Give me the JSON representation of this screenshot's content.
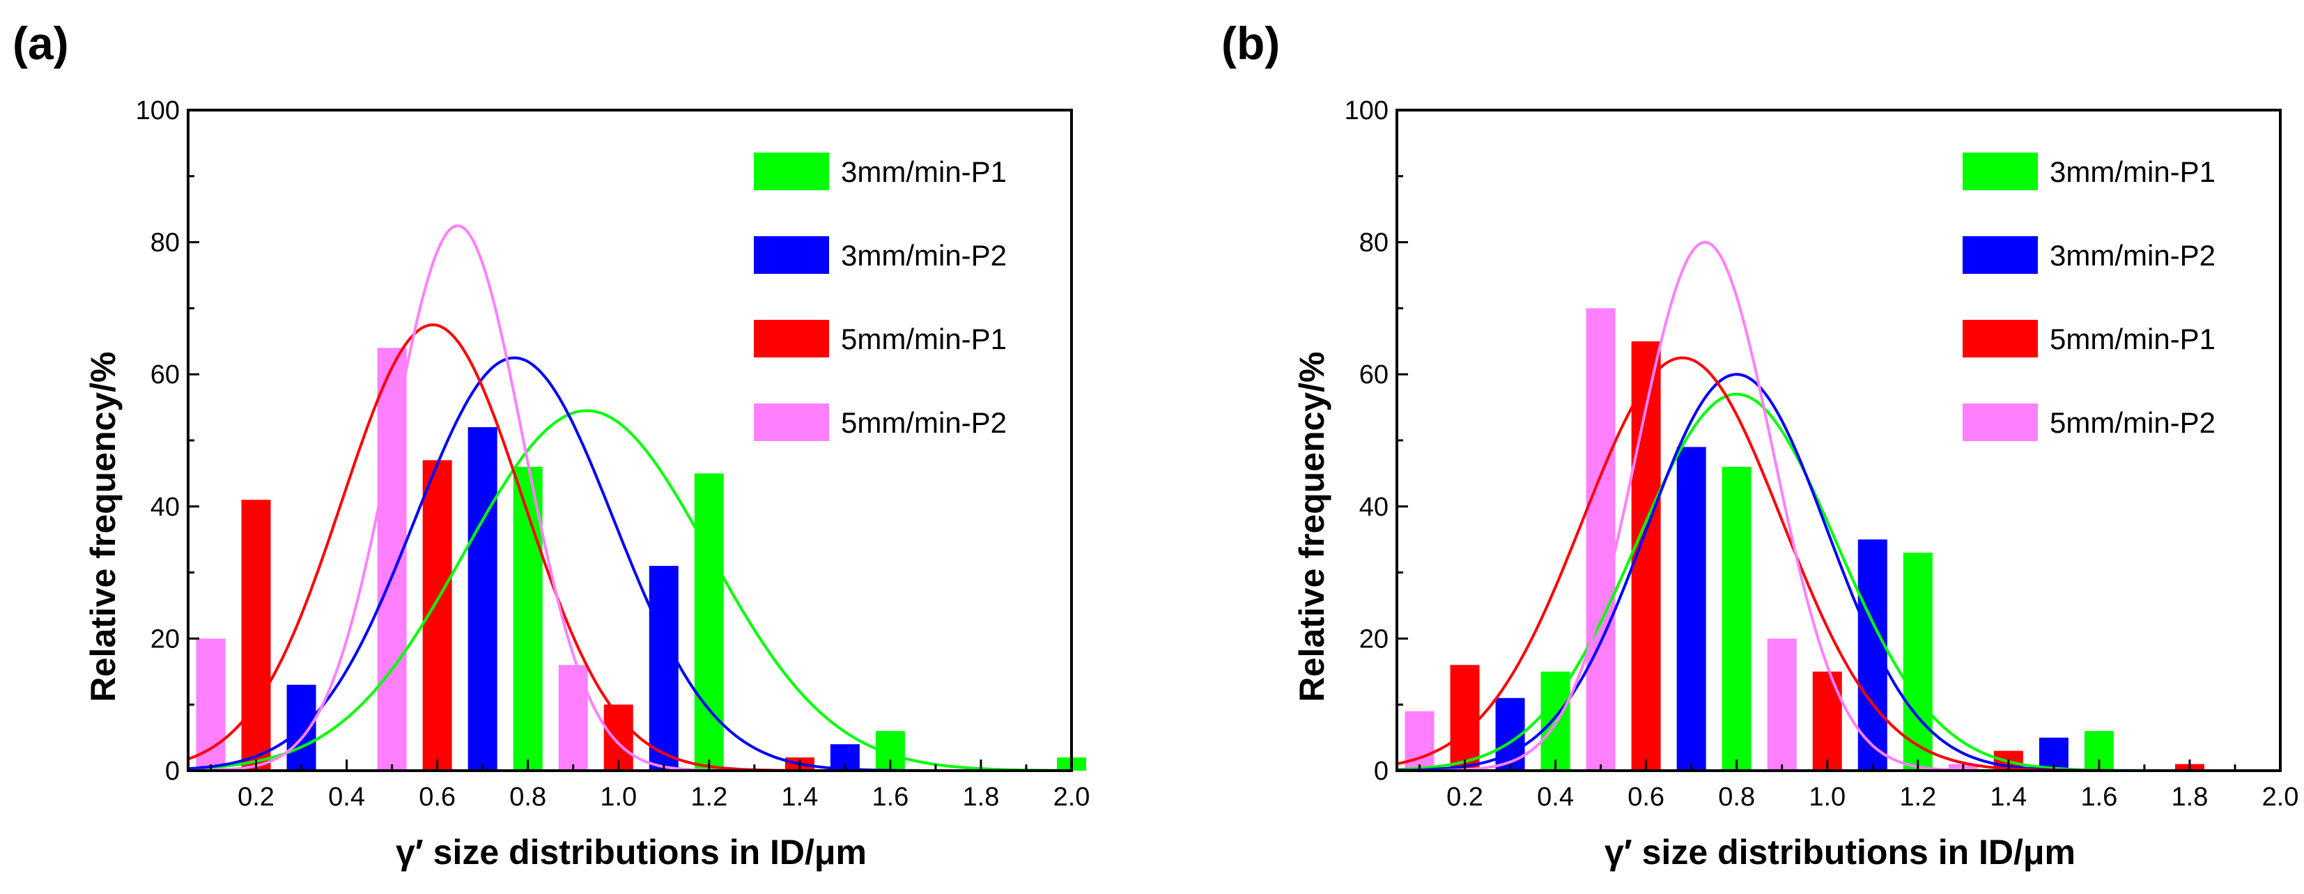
{
  "figure": {
    "panel_labels": [
      "(a)",
      "(b)"
    ]
  },
  "chart_data": [
    {
      "type": "bar",
      "panel": "(a)",
      "xlabel": "γ′ size distributions in ID/μm",
      "ylabel": "Relative frequency/%",
      "xlim": [
        0.05,
        2.0
      ],
      "ylim": [
        0,
        100
      ],
      "xticks": [
        "0.2",
        "0.4",
        "0.6",
        "0.8",
        "1.0",
        "1.2",
        "1.4",
        "1.6",
        "1.8",
        "2.0"
      ],
      "yticks": [
        "0",
        "20",
        "40",
        "60",
        "80",
        "100"
      ],
      "legend_position": "top-right",
      "series": [
        {
          "name": "3mm/min-P1",
          "color": "#00ff00",
          "bars": [
            [
              0.4,
              0
            ],
            [
              0.8,
              46
            ],
            [
              1.2,
              45
            ],
            [
              1.6,
              6
            ],
            [
              2.0,
              2
            ]
          ],
          "fit": {
            "mean": 0.93,
            "sigma": 0.27,
            "peak": 54.5
          }
        },
        {
          "name": "3mm/min-P2",
          "color": "#0000ff",
          "bars": [
            [
              0.3,
              13
            ],
            [
              0.7,
              52
            ],
            [
              1.1,
              31
            ],
            [
              1.5,
              4
            ]
          ],
          "fit": {
            "mean": 0.77,
            "sigma": 0.22,
            "peak": 62.5
          }
        },
        {
          "name": "5mm/min-P1",
          "color": "#ff0000",
          "bars": [
            [
              0.2,
              41
            ],
            [
              0.6,
              47
            ],
            [
              1.0,
              10
            ],
            [
              1.4,
              2
            ]
          ],
          "fit": {
            "mean": 0.59,
            "sigma": 0.2,
            "peak": 67.5
          }
        },
        {
          "name": "5mm/min-P2",
          "color": "#ff80ff",
          "bars": [
            [
              0.1,
              20
            ],
            [
              0.5,
              64
            ],
            [
              0.9,
              16
            ],
            [
              1.3,
              0
            ]
          ],
          "fit": {
            "mean": 0.645,
            "sigma": 0.145,
            "peak": 82.5
          }
        }
      ]
    },
    {
      "type": "bar",
      "panel": "(b)",
      "xlabel": "γ′ size distributions in ID/μm",
      "ylabel": "Relative frequency/%",
      "xlim": [
        0.05,
        2.0
      ],
      "ylim": [
        0,
        100
      ],
      "xticks": [
        "0.2",
        "0.4",
        "0.6",
        "0.8",
        "1.0",
        "1.2",
        "1.4",
        "1.6",
        "1.8",
        "2.0"
      ],
      "yticks": [
        "0",
        "20",
        "40",
        "60",
        "80",
        "100"
      ],
      "legend_position": "top-right",
      "series": [
        {
          "name": "3mm/min-P1",
          "color": "#00ff00",
          "bars": [
            [
              0.4,
              15
            ],
            [
              0.8,
              46
            ],
            [
              1.2,
              33
            ],
            [
              1.6,
              6
            ],
            [
              2.0,
              0
            ]
          ],
          "fit": {
            "mean": 0.8,
            "sigma": 0.22,
            "peak": 57
          }
        },
        {
          "name": "3mm/min-P2",
          "color": "#0000ff",
          "bars": [
            [
              0.3,
              11
            ],
            [
              0.7,
              49
            ],
            [
              1.1,
              35
            ],
            [
              1.5,
              5
            ]
          ],
          "fit": {
            "mean": 0.8,
            "sigma": 0.2,
            "peak": 60
          }
        },
        {
          "name": "5mm/min-P1",
          "color": "#ff0000",
          "bars": [
            [
              0.2,
              16
            ],
            [
              0.6,
              65
            ],
            [
              1.0,
              15
            ],
            [
              1.4,
              3
            ],
            [
              1.8,
              1
            ]
          ],
          "fit": {
            "mean": 0.68,
            "sigma": 0.22,
            "peak": 62.5
          }
        },
        {
          "name": "5mm/min-P2",
          "color": "#ff80ff",
          "bars": [
            [
              0.1,
              9
            ],
            [
              0.5,
              70
            ],
            [
              0.9,
              20
            ],
            [
              1.3,
              1
            ]
          ],
          "fit": {
            "mean": 0.73,
            "sigma": 0.15,
            "peak": 80
          }
        }
      ]
    }
  ]
}
